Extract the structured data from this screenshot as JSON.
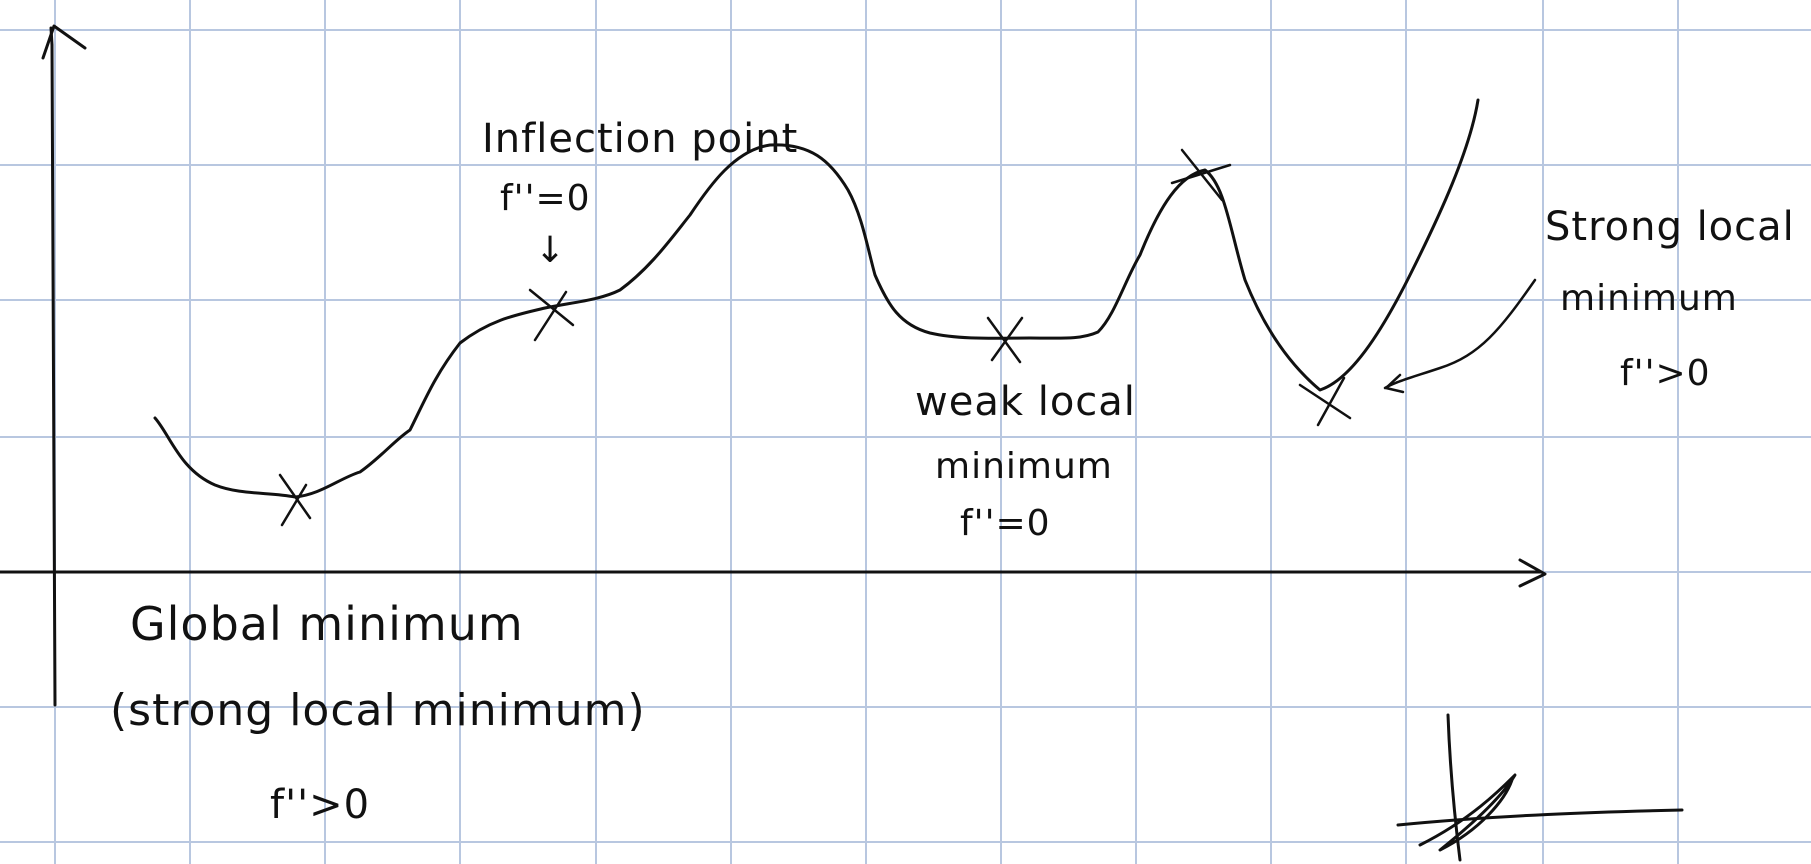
{
  "colors": {
    "background": "#ffffff",
    "grid": "#b8c7e0",
    "ink": "#111111"
  },
  "annotations": {
    "inflection": {
      "title": "Inflection point",
      "condition": "f''=0",
      "arrow": "↓"
    },
    "weak_min": {
      "line1": "weak local",
      "line2": "minimum",
      "condition": "f''=0"
    },
    "strong_local": {
      "line1": "Strong local",
      "line2": "minimum",
      "condition": "f''>0"
    },
    "global_min": {
      "line1": "Global minimum",
      "line2": "(strong local minimum)",
      "condition": "f''>0"
    }
  },
  "marks": {
    "critical_points": [
      "global-minimum",
      "inflection-point",
      "local-maximum",
      "weak-local-minimum",
      "strong-local-minimum"
    ]
  }
}
